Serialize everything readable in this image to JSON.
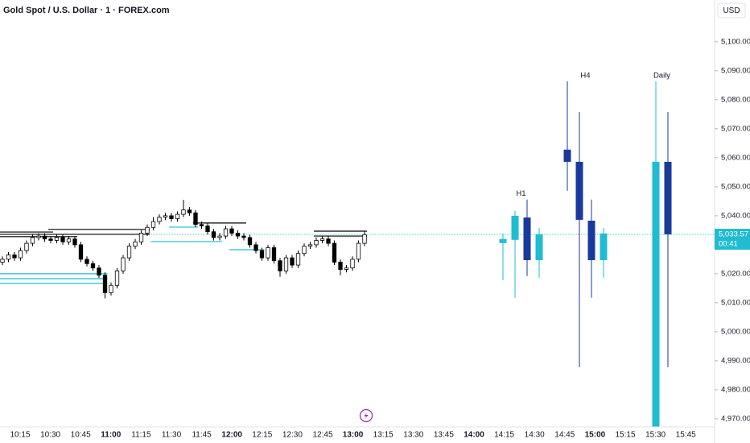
{
  "chart_data": {
    "type": "candlestick",
    "title": "Gold Spot / U.S. Dollar · 1 · FOREX.com",
    "currency": "USD",
    "ylim": [
      4967.2,
      5114.4
    ],
    "yticks": [
      {
        "value": 4970,
        "label": "4,970.00"
      },
      {
        "value": 4980,
        "label": "4,980.00"
      },
      {
        "value": 4990,
        "label": "4,990.00"
      },
      {
        "value": 5000,
        "label": "5,000.00"
      },
      {
        "value": 5010,
        "label": "5,010.00"
      },
      {
        "value": 5020,
        "label": "5,020.00"
      },
      {
        "value": 5030,
        "label": "5,030.00"
      },
      {
        "value": 5040,
        "label": "5,040.00"
      },
      {
        "value": 5050,
        "label": "5,050.00"
      },
      {
        "value": 5060,
        "label": "5,060.00"
      },
      {
        "value": 5070,
        "label": "5,070.00"
      },
      {
        "value": 5080,
        "label": "5,080.00"
      },
      {
        "value": 5090,
        "label": "5,090.00"
      },
      {
        "value": 5100,
        "label": "5,100.00"
      }
    ],
    "xtick_labels": [
      "10:15",
      "10:30",
      "10:45",
      "11:00",
      "11:15",
      "11:30",
      "11:45",
      "12:00",
      "12:15",
      "12:30",
      "12:45",
      "13:00",
      "13:15",
      "13:30",
      "13:45",
      "14:00",
      "14:15",
      "14:30",
      "14:45",
      "15:00",
      "15:15",
      "15:30",
      "15:45"
    ],
    "last_price": {
      "value": 5033.57,
      "label": "5,033.57"
    },
    "countdown": "00:41",
    "last_price_color": "#1fbcd2",
    "up_color": "#ffffff",
    "down_color": "#000000",
    "candles": {
      "open": [
        5024.0,
        5025.0,
        5026.5,
        5025.5,
        5028.0,
        5030.5,
        5032.5,
        5033.0,
        5032.0,
        5031.5,
        5032.5,
        5031.0,
        5032.0,
        5030.0,
        5025.0,
        5023.5,
        5022.0,
        5019.5,
        5013.5,
        5016.0,
        5021.0,
        5025.5,
        5029.5,
        5031.0,
        5034.0,
        5036.0,
        5038.0,
        5039.5,
        5040.0,
        5039.0,
        5040.5,
        5042.0,
        5041.0,
        5037.0,
        5036.5,
        5034.5,
        5032.5,
        5033.0,
        5035.5,
        5034.0,
        5033.0,
        5032.5,
        5030.0,
        5028.0,
        5025.5,
        5029.0,
        5024.5,
        5021.0,
        5025.5,
        5023.0,
        5027.0,
        5029.5,
        5030.0,
        5031.5,
        5032.0,
        5030.5,
        5024.0,
        5021.5,
        5022.0,
        5025.0,
        5030.5
      ],
      "high": [
        5026.0,
        5027.5,
        5027.5,
        5029.0,
        5031.5,
        5033.5,
        5034.0,
        5034.0,
        5033.0,
        5033.5,
        5033.5,
        5033.0,
        5033.0,
        5031.0,
        5026.0,
        5024.5,
        5023.0,
        5020.5,
        5017.0,
        5022.0,
        5026.5,
        5030.5,
        5032.0,
        5035.0,
        5037.0,
        5039.5,
        5040.5,
        5041.0,
        5041.0,
        5041.5,
        5045.5,
        5043.0,
        5042.0,
        5038.0,
        5037.5,
        5035.5,
        5034.0,
        5036.5,
        5036.5,
        5035.0,
        5034.0,
        5033.5,
        5031.0,
        5029.0,
        5030.0,
        5030.0,
        5025.5,
        5026.5,
        5026.5,
        5028.0,
        5030.5,
        5031.0,
        5032.5,
        5033.0,
        5033.0,
        5031.5,
        5025.0,
        5023.0,
        5026.0,
        5031.5,
        5034.5
      ],
      "low": [
        5023.0,
        5024.0,
        5024.5,
        5024.5,
        5027.0,
        5029.5,
        5031.5,
        5031.0,
        5030.5,
        5030.5,
        5030.0,
        5030.0,
        5029.0,
        5024.0,
        5022.5,
        5021.0,
        5018.5,
        5011.5,
        5012.5,
        5015.0,
        5020.0,
        5024.5,
        5028.5,
        5030.0,
        5033.0,
        5035.0,
        5037.0,
        5038.5,
        5038.0,
        5038.0,
        5039.5,
        5040.0,
        5036.0,
        5035.5,
        5033.5,
        5031.5,
        5031.5,
        5032.0,
        5033.0,
        5032.0,
        5031.5,
        5029.0,
        5027.0,
        5024.5,
        5024.5,
        5023.5,
        5019.0,
        5020.0,
        5022.0,
        5022.0,
        5026.0,
        5028.5,
        5029.0,
        5030.5,
        5029.5,
        5023.0,
        5019.5,
        5020.5,
        5021.0,
        5024.0,
        5029.5
      ],
      "close": [
        5025.0,
        5026.5,
        5025.5,
        5028.0,
        5030.5,
        5032.5,
        5033.0,
        5032.0,
        5031.5,
        5032.5,
        5031.0,
        5032.0,
        5030.0,
        5025.0,
        5023.5,
        5022.0,
        5019.5,
        5013.5,
        5016.0,
        5021.0,
        5025.5,
        5029.5,
        5031.0,
        5034.0,
        5036.0,
        5038.0,
        5039.5,
        5040.0,
        5039.0,
        5040.5,
        5042.0,
        5041.0,
        5037.0,
        5036.5,
        5034.5,
        5032.5,
        5033.0,
        5035.5,
        5034.0,
        5033.0,
        5032.5,
        5030.0,
        5028.0,
        5025.5,
        5029.0,
        5024.5,
        5021.0,
        5025.5,
        5023.0,
        5027.0,
        5029.5,
        5030.0,
        5031.5,
        5032.0,
        5030.5,
        5024.0,
        5021.5,
        5022.0,
        5025.0,
        5030.5,
        5033.5
      ]
    },
    "levels": [
      {
        "value": 5035.3,
        "from": 8,
        "to": 24,
        "color": "#000000"
      },
      {
        "value": 5034.4,
        "from": 0,
        "to": 8,
        "color": "#000000"
      },
      {
        "value": 5033.6,
        "from": 0,
        "to": 24,
        "color": "#000000"
      },
      {
        "value": 5032.8,
        "from": 0,
        "to": 12,
        "color": "#000000"
      },
      {
        "value": 5020.0,
        "from": 0,
        "to": 17,
        "color": "#1fbcd2"
      },
      {
        "value": 5018.3,
        "from": 0,
        "to": 17,
        "color": "#1fbcd2"
      },
      {
        "value": 5016.7,
        "from": 0,
        "to": 17,
        "color": "#1fbcd2"
      },
      {
        "value": 5036.1,
        "from": 28,
        "to": 32,
        "color": "#1fbcd2"
      },
      {
        "value": 5031.1,
        "from": 25,
        "to": 36,
        "color": "#1fbcd2"
      },
      {
        "value": 5037.5,
        "from": 32,
        "to": 40,
        "color": "#000000"
      },
      {
        "value": 5028.3,
        "from": 38,
        "to": 43,
        "color": "#1fbcd2"
      },
      {
        "value": 5034.7,
        "from": 52,
        "to": 60,
        "color": "#000000"
      },
      {
        "value": 5033.0,
        "from": 52,
        "to": 60,
        "color": "#000000"
      }
    ],
    "htf_up_color": "#1fbcd2",
    "htf_down_color": "#1a3a9b",
    "htf_series": [
      {
        "name": "H1",
        "open": [
          5030.6,
          5031.7,
          5039.4,
          5024.7
        ],
        "high": [
          5033.9,
          5041.7,
          5045.6,
          5035.8
        ],
        "low": [
          5017.8,
          5011.7,
          5019.2,
          5018.6
        ],
        "close": [
          5032.0,
          5040.0,
          5024.7,
          5033.6
        ]
      },
      {
        "name": "H4",
        "open": [
          5062.8,
          5058.6,
          5038.3,
          5024.7
        ],
        "high": [
          5086.4,
          5075.8,
          5045.6,
          5035.8
        ],
        "low": [
          5048.6,
          4987.8,
          5011.7,
          5018.6
        ],
        "close": [
          5058.6,
          5038.6,
          5024.7,
          5033.9
        ]
      },
      {
        "name": "Daily",
        "open": [
          4967.0,
          5058.6
        ],
        "high": [
          5086.4,
          5075.8
        ],
        "low": [
          4967.0,
          4987.8
        ],
        "close": [
          5058.6,
          5033.6
        ]
      }
    ]
  }
}
